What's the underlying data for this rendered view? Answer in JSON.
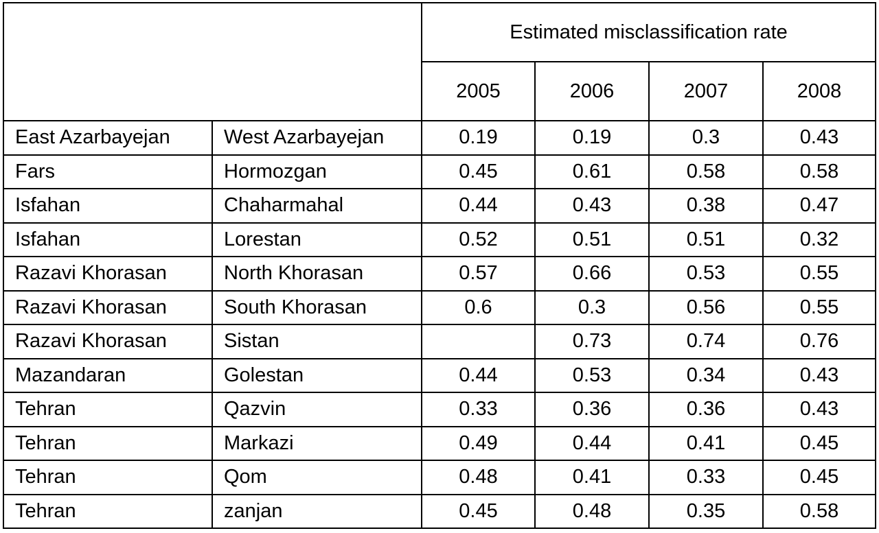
{
  "table": {
    "header": {
      "group_label": "Estimated misclassification rate",
      "years": [
        "2005",
        "2006",
        "2007",
        "2008"
      ]
    },
    "rows": [
      {
        "region_a": "East Azarbayejan",
        "region_b": "West Azarbayejan",
        "values": [
          "0.19",
          "0.19",
          "0.3",
          "0.43"
        ]
      },
      {
        "region_a": "Fars",
        "region_b": "Hormozgan",
        "values": [
          "0.45",
          "0.61",
          "0.58",
          "0.58"
        ]
      },
      {
        "region_a": "Isfahan",
        "region_b": "Chaharmahal",
        "values": [
          "0.44",
          "0.43",
          "0.38",
          "0.47"
        ]
      },
      {
        "region_a": "Isfahan",
        "region_b": "Lorestan",
        "values": [
          "0.52",
          "0.51",
          "0.51",
          "0.32"
        ]
      },
      {
        "region_a": "Razavi Khorasan",
        "region_b": "North Khorasan",
        "values": [
          "0.57",
          "0.66",
          "0.53",
          "0.55"
        ]
      },
      {
        "region_a": "Razavi Khorasan",
        "region_b": "South Khorasan",
        "values": [
          "0.6",
          "0.3",
          "0.56",
          "0.55"
        ]
      },
      {
        "region_a": "Razavi Khorasan",
        "region_b": "Sistan",
        "values": [
          "",
          "0.73",
          "0.74",
          "0.76"
        ]
      },
      {
        "region_a": "Mazandaran",
        "region_b": "Golestan",
        "values": [
          "0.44",
          "0.53",
          "0.34",
          "0.43"
        ]
      },
      {
        "region_a": "Tehran",
        "region_b": "Qazvin",
        "values": [
          "0.33",
          "0.36",
          "0.36",
          "0.43"
        ]
      },
      {
        "region_a": "Tehran",
        "region_b": "Markazi",
        "values": [
          "0.49",
          "0.44",
          "0.41",
          "0.45"
        ]
      },
      {
        "region_a": "Tehran",
        "region_b": "Qom",
        "values": [
          "0.48",
          "0.41",
          "0.33",
          "0.45"
        ]
      },
      {
        "region_a": "Tehran",
        "region_b": "zanjan",
        "values": [
          "0.45",
          "0.48",
          "0.35",
          "0.58"
        ]
      }
    ]
  }
}
